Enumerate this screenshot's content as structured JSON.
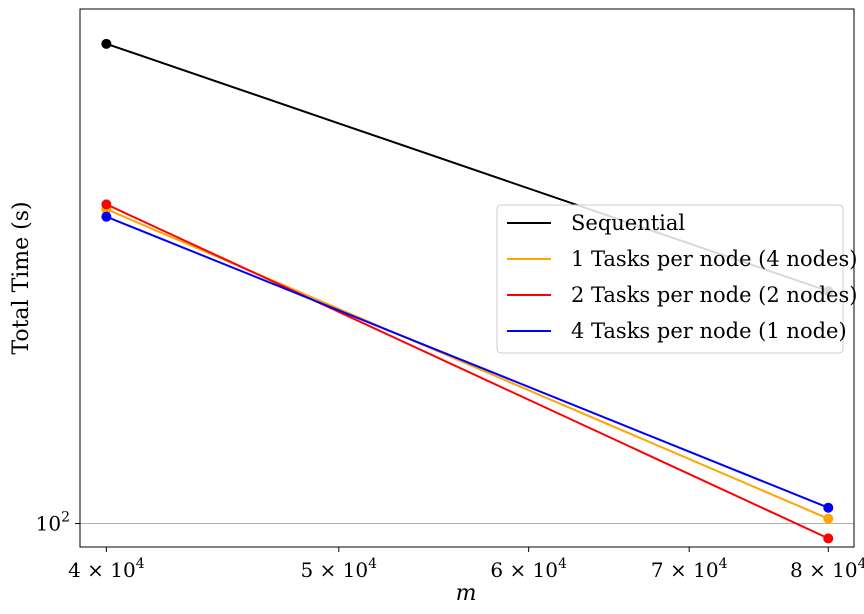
{
  "chart_data": {
    "type": "line",
    "xscale": "log",
    "yscale": "log",
    "xlabel": "m",
    "ylabel": "Total Time (s)",
    "xlim": [
      39000,
      82000
    ],
    "ylim": [
      93,
      490
    ],
    "x": [
      40000,
      80000
    ],
    "x_ticks": [
      {
        "value": 40000,
        "label": "4 × 10",
        "exp": "4"
      },
      {
        "value": 50000,
        "label": "5 × 10",
        "exp": "4"
      },
      {
        "value": 60000,
        "label": "6 × 10",
        "exp": "4"
      },
      {
        "value": 70000,
        "label": "7 × 10",
        "exp": "4"
      },
      {
        "value": 80000,
        "label": "8 × 10",
        "exp": "4"
      }
    ],
    "y_ticks": [
      {
        "value": 100,
        "label": "10",
        "exp": "2"
      }
    ],
    "grid": "y-major",
    "legend_position": "center-right",
    "series": [
      {
        "name": "Sequential",
        "color": "#000000",
        "values": [
          440,
          205
        ]
      },
      {
        "name": "1 Tasks per node (4 nodes)",
        "color": "#ffa500",
        "values": [
          264,
          101.5
        ]
      },
      {
        "name": "2 Tasks per node (2 nodes)",
        "color": "#ff0000",
        "values": [
          268,
          95.5
        ]
      },
      {
        "name": "4 Tasks per node (1 node)",
        "color": "#0000ff",
        "values": [
          258,
          105
        ]
      }
    ]
  }
}
